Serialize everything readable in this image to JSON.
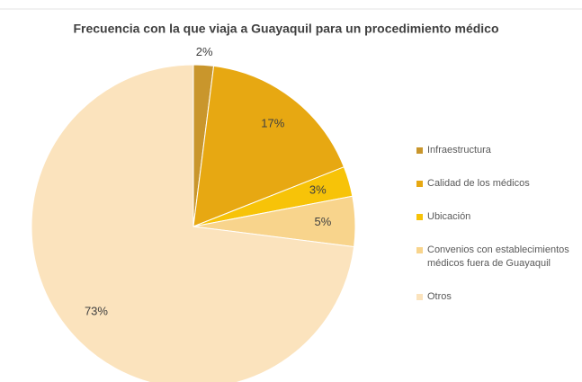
{
  "chart_data": {
    "type": "pie",
    "title": "Frecuencia con la que viaja a Guayaquil para un procedimiento médico",
    "categories": [
      "Infraestructura",
      "Calidad de los médicos",
      "Ubicación",
      "Convenios con establecimientos médicos fuera de Guayaquil",
      "Otros"
    ],
    "values": [
      2,
      17,
      3,
      5,
      73
    ],
    "value_labels": [
      "2%",
      "17%",
      "3%",
      "5%",
      "73%"
    ],
    "colors": [
      "#c9962c",
      "#e7a812",
      "#f7c308",
      "#f8d48c",
      "#fbe3bd"
    ],
    "legend": "right"
  }
}
